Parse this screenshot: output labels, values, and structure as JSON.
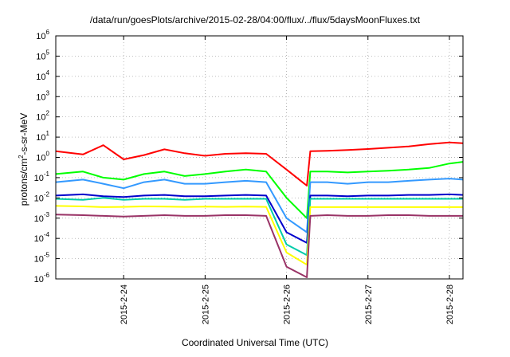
{
  "chart_data": {
    "type": "line",
    "title": "/data/run/goesPlots/archive/2015-02-28/04:00/flux/../flux/5daysMoonFluxes.txt",
    "xlabel": "Coordinated Universal Time (UTC)",
    "ylabel_main": "protons/cm",
    "ylabel_sup": "2",
    "ylabel_tail": "-s-sr-MeV",
    "yscale": "log",
    "ylim": [
      1e-06,
      1000000.0
    ],
    "xlim": [
      "2015-02-23T04:00",
      "2015-02-28T04:00"
    ],
    "grid": true,
    "xticks": [
      "2015-2-24",
      "2015-2-25",
      "2015-2-26",
      "2015-2-27",
      "2015-2-28"
    ],
    "yticks": [
      {
        "base": "10",
        "exp": "6"
      },
      {
        "base": "10",
        "exp": "5"
      },
      {
        "base": "10",
        "exp": "4"
      },
      {
        "base": "10",
        "exp": "3"
      },
      {
        "base": "10",
        "exp": "2"
      },
      {
        "base": "10",
        "exp": "1"
      },
      {
        "base": "10",
        "exp": "0"
      },
      {
        "base": "10",
        "exp": "-1"
      },
      {
        "base": "10",
        "exp": "-2"
      },
      {
        "base": "10",
        "exp": "-3"
      },
      {
        "base": "10",
        "exp": "-4"
      },
      {
        "base": "10",
        "exp": "-5"
      },
      {
        "base": "10",
        "exp": "-6"
      }
    ],
    "series": [
      {
        "color": "#ff0000",
        "x": [
          "2015-02-23T04:00",
          "2015-02-23T12:00",
          "2015-02-23T18:00",
          "2015-02-24T00:00",
          "2015-02-24T06:00",
          "2015-02-24T12:00",
          "2015-02-24T18:00",
          "2015-02-25T00:00",
          "2015-02-25T06:00",
          "2015-02-25T12:00",
          "2015-02-25T18:00",
          "2015-02-26T00:00",
          "2015-02-26T06:00",
          "2015-02-26T07:00",
          "2015-02-26T12:00",
          "2015-02-26T18:00",
          "2015-02-27T00:00",
          "2015-02-27T06:00",
          "2015-02-27T12:00",
          "2015-02-27T18:00",
          "2015-02-28T00:00",
          "2015-02-28T04:00"
        ],
        "y": [
          2.0,
          1.4,
          4.0,
          0.8,
          1.3,
          2.5,
          1.6,
          1.2,
          1.5,
          1.6,
          1.5,
          0.25,
          0.04,
          2.0,
          2.1,
          2.3,
          2.6,
          3.0,
          3.5,
          4.5,
          5.5,
          5.0
        ]
      },
      {
        "color": "#00ff00",
        "x": [
          "2015-02-23T04:00",
          "2015-02-23T12:00",
          "2015-02-23T18:00",
          "2015-02-24T00:00",
          "2015-02-24T06:00",
          "2015-02-24T12:00",
          "2015-02-24T18:00",
          "2015-02-25T00:00",
          "2015-02-25T06:00",
          "2015-02-25T12:00",
          "2015-02-25T18:00",
          "2015-02-26T00:00",
          "2015-02-26T06:00",
          "2015-02-26T07:00",
          "2015-02-26T12:00",
          "2015-02-26T18:00",
          "2015-02-27T00:00",
          "2015-02-27T06:00",
          "2015-02-27T12:00",
          "2015-02-27T18:00",
          "2015-02-28T00:00",
          "2015-02-28T04:00"
        ],
        "y": [
          0.15,
          0.2,
          0.1,
          0.08,
          0.15,
          0.2,
          0.12,
          0.15,
          0.2,
          0.25,
          0.2,
          0.01,
          0.001,
          0.2,
          0.2,
          0.18,
          0.2,
          0.22,
          0.25,
          0.3,
          0.5,
          0.6
        ]
      },
      {
        "color": "#3399ff",
        "x": [
          "2015-02-23T04:00",
          "2015-02-23T12:00",
          "2015-02-23T18:00",
          "2015-02-24T00:00",
          "2015-02-24T06:00",
          "2015-02-24T12:00",
          "2015-02-24T18:00",
          "2015-02-25T00:00",
          "2015-02-25T06:00",
          "2015-02-25T12:00",
          "2015-02-25T18:00",
          "2015-02-26T00:00",
          "2015-02-26T06:00",
          "2015-02-26T07:00",
          "2015-02-26T12:00",
          "2015-02-26T18:00",
          "2015-02-27T00:00",
          "2015-02-27T06:00",
          "2015-02-27T12:00",
          "2015-02-27T18:00",
          "2015-02-28T00:00",
          "2015-02-28T04:00"
        ],
        "y": [
          0.06,
          0.08,
          0.05,
          0.03,
          0.06,
          0.08,
          0.05,
          0.05,
          0.06,
          0.07,
          0.06,
          0.001,
          0.0002,
          0.06,
          0.06,
          0.05,
          0.06,
          0.06,
          0.07,
          0.08,
          0.09,
          0.08
        ]
      },
      {
        "color": "#0000cc",
        "x": [
          "2015-02-23T04:00",
          "2015-02-23T12:00",
          "2015-02-23T18:00",
          "2015-02-24T00:00",
          "2015-02-24T06:00",
          "2015-02-24T12:00",
          "2015-02-24T18:00",
          "2015-02-25T00:00",
          "2015-02-25T06:00",
          "2015-02-25T12:00",
          "2015-02-25T18:00",
          "2015-02-26T00:00",
          "2015-02-26T06:00",
          "2015-02-26T07:00",
          "2015-02-26T12:00",
          "2015-02-26T18:00",
          "2015-02-27T00:00",
          "2015-02-27T06:00",
          "2015-02-27T12:00",
          "2015-02-27T18:00",
          "2015-02-28T00:00",
          "2015-02-28T04:00"
        ],
        "y": [
          0.013,
          0.015,
          0.012,
          0.011,
          0.013,
          0.014,
          0.012,
          0.012,
          0.013,
          0.014,
          0.013,
          0.0002,
          6e-05,
          0.013,
          0.013,
          0.012,
          0.013,
          0.013,
          0.014,
          0.014,
          0.015,
          0.014
        ]
      },
      {
        "color": "#00ccaa",
        "x": [
          "2015-02-23T04:00",
          "2015-02-23T12:00",
          "2015-02-23T18:00",
          "2015-02-24T00:00",
          "2015-02-24T06:00",
          "2015-02-24T12:00",
          "2015-02-24T18:00",
          "2015-02-25T00:00",
          "2015-02-25T06:00",
          "2015-02-25T12:00",
          "2015-02-25T18:00",
          "2015-02-26T00:00",
          "2015-02-26T06:00",
          "2015-02-26T07:00",
          "2015-02-26T12:00",
          "2015-02-26T18:00",
          "2015-02-27T00:00",
          "2015-02-27T06:00",
          "2015-02-27T12:00",
          "2015-02-27T18:00",
          "2015-02-28T00:00",
          "2015-02-28T04:00"
        ],
        "y": [
          0.009,
          0.008,
          0.01,
          0.008,
          0.009,
          0.009,
          0.008,
          0.009,
          0.009,
          0.009,
          0.009,
          5e-05,
          1.5e-05,
          0.009,
          0.009,
          0.009,
          0.009,
          0.009,
          0.009,
          0.009,
          0.009,
          0.009
        ]
      },
      {
        "color": "#ffff00",
        "x": [
          "2015-02-23T04:00",
          "2015-02-23T12:00",
          "2015-02-23T18:00",
          "2015-02-24T00:00",
          "2015-02-24T06:00",
          "2015-02-24T12:00",
          "2015-02-24T18:00",
          "2015-02-25T00:00",
          "2015-02-25T06:00",
          "2015-02-25T12:00",
          "2015-02-25T18:00",
          "2015-02-26T00:00",
          "2015-02-26T06:00",
          "2015-02-26T07:00",
          "2015-02-26T12:00",
          "2015-02-26T18:00",
          "2015-02-27T00:00",
          "2015-02-27T06:00",
          "2015-02-27T12:00",
          "2015-02-27T18:00",
          "2015-02-28T00:00",
          "2015-02-28T04:00"
        ],
        "y": [
          0.004,
          0.0038,
          0.0035,
          0.0036,
          0.0038,
          0.0037,
          0.0036,
          0.0037,
          0.0036,
          0.0037,
          0.0036,
          2e-05,
          5e-06,
          0.0035,
          0.0035,
          0.0035,
          0.0035,
          0.0035,
          0.0035,
          0.0035,
          0.0035,
          0.0035
        ]
      },
      {
        "color": "#993366",
        "x": [
          "2015-02-23T04:00",
          "2015-02-23T12:00",
          "2015-02-23T18:00",
          "2015-02-24T00:00",
          "2015-02-24T06:00",
          "2015-02-24T12:00",
          "2015-02-24T18:00",
          "2015-02-25T00:00",
          "2015-02-25T06:00",
          "2015-02-25T12:00",
          "2015-02-25T18:00",
          "2015-02-26T00:00",
          "2015-02-26T06:00",
          "2015-02-26T07:00",
          "2015-02-26T12:00",
          "2015-02-26T18:00",
          "2015-02-27T00:00",
          "2015-02-27T06:00",
          "2015-02-27T12:00",
          "2015-02-27T18:00",
          "2015-02-28T00:00",
          "2015-02-28T04:00"
        ],
        "y": [
          0.0015,
          0.0014,
          0.0013,
          0.0012,
          0.0013,
          0.0014,
          0.0013,
          0.0013,
          0.0014,
          0.0014,
          0.0013,
          4e-06,
          1.2e-06,
          0.0013,
          0.0014,
          0.0013,
          0.0013,
          0.0014,
          0.0014,
          0.0013,
          0.0013,
          0.0013
        ]
      }
    ]
  }
}
